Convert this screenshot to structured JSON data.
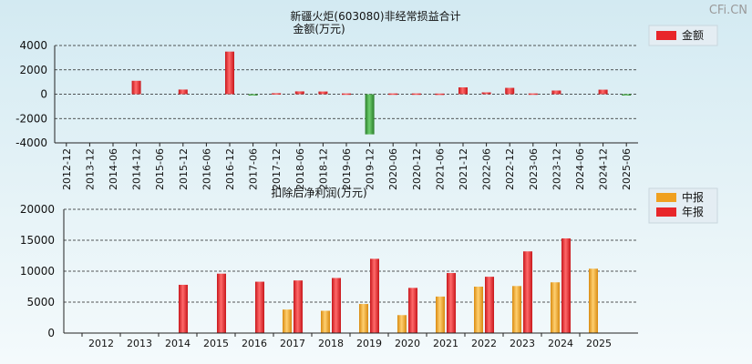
{
  "watermark": "CFi.CN",
  "chart_data": [
    {
      "type": "bar",
      "title": "新疆火炬(603080)非经常损益合计",
      "subtitle": "金额(万元)",
      "categories": [
        "2012-12",
        "2013-12",
        "2014-06",
        "2014-12",
        "2015-06",
        "2015-12",
        "2016-06",
        "2016-12",
        "2017-06",
        "2017-12",
        "2018-06",
        "2018-12",
        "2019-06",
        "2019-12",
        "2020-06",
        "2020-12",
        "2021-06",
        "2021-12",
        "2022-06",
        "2022-12",
        "2023-06",
        "2023-12",
        "2024-06",
        "2024-12",
        "2025-06"
      ],
      "series": [
        {
          "name": "金额",
          "values": [
            0,
            0,
            0,
            1100,
            0,
            380,
            0,
            3500,
            -80,
            80,
            230,
            220,
            60,
            -3300,
            60,
            60,
            50,
            560,
            150,
            520,
            60,
            300,
            0,
            370,
            -60
          ]
        }
      ],
      "ylim": [
        -4000,
        4000
      ],
      "yticks": [
        4000,
        2000,
        0,
        -2000,
        -4000
      ],
      "grid": true,
      "legend_position": "top-right",
      "colors": {
        "positive": "#e8262a",
        "negative": "#3a9a3a"
      }
    },
    {
      "type": "bar",
      "title": "扣除后净利润(万元)",
      "categories": [
        "2012",
        "2013",
        "2014",
        "2015",
        "2016",
        "2017",
        "2018",
        "2019",
        "2020",
        "2021",
        "2022",
        "2023",
        "2024",
        "2025"
      ],
      "series": [
        {
          "name": "中报",
          "values": [
            null,
            null,
            null,
            null,
            null,
            3800,
            3600,
            4700,
            2900,
            5900,
            7500,
            7600,
            8200,
            10400
          ]
        },
        {
          "name": "年报",
          "values": [
            null,
            null,
            7800,
            9600,
            8300,
            8500,
            8900,
            12000,
            7300,
            9700,
            9100,
            13200,
            15300,
            null
          ]
        }
      ],
      "ylim": [
        0,
        20000
      ],
      "yticks": [
        20000,
        15000,
        10000,
        5000,
        0
      ],
      "grid": true,
      "legend_position": "top-right",
      "colors": {
        "中报": "#f0a020",
        "年报": "#e8262a"
      }
    }
  ]
}
